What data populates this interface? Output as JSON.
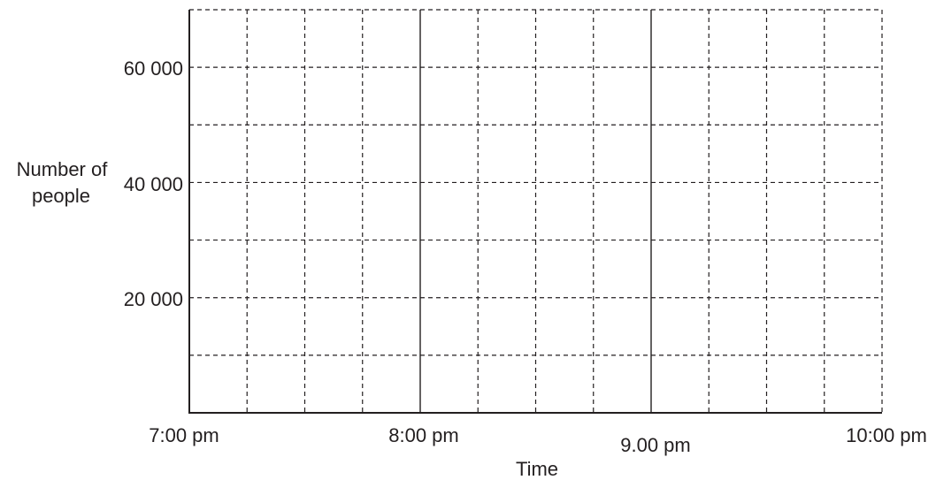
{
  "chart_data": {
    "type": "line",
    "title": "",
    "xlabel": "Time",
    "ylabel_lines": [
      "Number of",
      "people"
    ],
    "x_tick_labels": [
      "7:00 pm",
      "8:00 pm",
      "9.00 pm",
      "10:00 pm"
    ],
    "y_tick_labels": [
      "20 000",
      "40 000",
      "60 000"
    ],
    "y_ticks": [
      20000,
      40000,
      60000
    ],
    "x_range_hours": [
      19,
      22
    ],
    "ylim": [
      0,
      70000
    ],
    "x_minor_step_minutes": 15,
    "y_minor_step": 10000,
    "grid": true,
    "grid_style": "dashed",
    "series": []
  },
  "colors": {
    "axis": "#231f20",
    "grid": "#231f20",
    "text": "#231f20",
    "background": "#ffffff"
  }
}
